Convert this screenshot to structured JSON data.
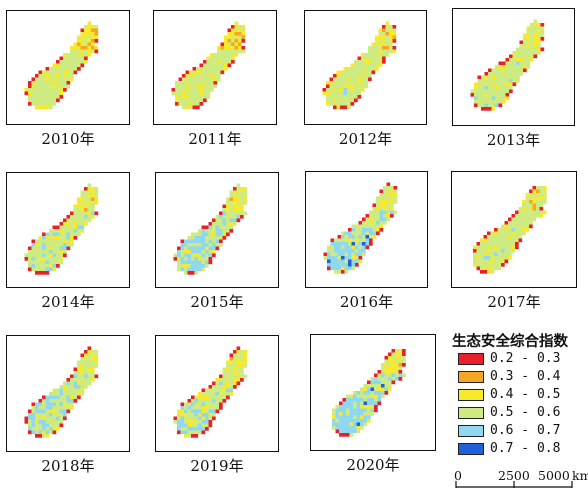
{
  "maps": [
    {
      "year_label": "2010年",
      "year": 2010,
      "blue_share": 0.0
    },
    {
      "year_label": "2011年",
      "year": 2011,
      "blue_share": 0.0
    },
    {
      "year_label": "2012年",
      "year": 2012,
      "blue_share": 0.02
    },
    {
      "year_label": "2013年",
      "year": 2013,
      "blue_share": 0.08
    },
    {
      "year_label": "2014年",
      "year": 2014,
      "blue_share": 0.2
    },
    {
      "year_label": "2015年",
      "year": 2015,
      "blue_share": 0.45
    },
    {
      "year_label": "2016年",
      "year": 2016,
      "blue_share": 0.55
    },
    {
      "year_label": "2017年",
      "year": 2017,
      "blue_share": 0.03
    },
    {
      "year_label": "2018年",
      "year": 2018,
      "blue_share": 0.35
    },
    {
      "year_label": "2019年",
      "year": 2019,
      "blue_share": 0.3
    },
    {
      "year_label": "2020年",
      "year": 2020,
      "blue_share": 0.65
    }
  ],
  "legend": {
    "title": "生态安全综合指数",
    "items": [
      {
        "label": "0.2 - 0.3",
        "color": "#e8202a"
      },
      {
        "label": "0.3 - 0.4",
        "color": "#f5a623"
      },
      {
        "label": "0.4 - 0.5",
        "color": "#f8ea2a"
      },
      {
        "label": "0.5 - 0.6",
        "color": "#cdeb80"
      },
      {
        "label": "0.6 - 0.7",
        "color": "#8fd8f0"
      },
      {
        "label": "0.7 - 0.8",
        "color": "#2060d8"
      }
    ]
  },
  "scale": {
    "ticks": [
      "0",
      "2500",
      "5000"
    ],
    "unit": "km"
  }
}
